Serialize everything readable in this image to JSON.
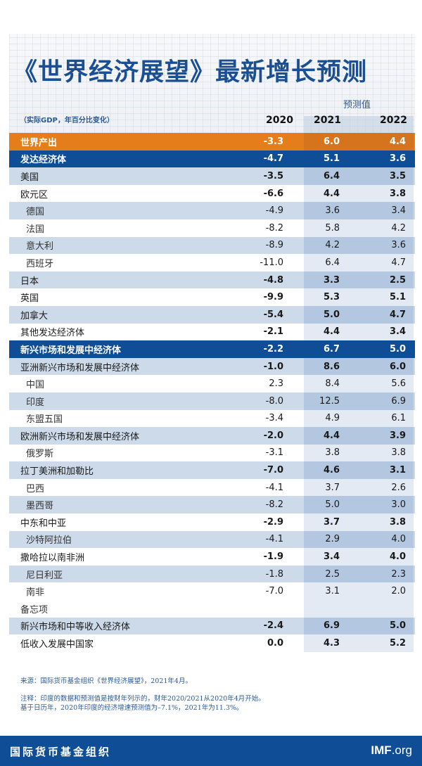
{
  "title": "《世界经济展望》最新增长预测",
  "subtitle": "（实际GDP，年百分比变化）",
  "forecast_label": "预测值",
  "columns": [
    "2020",
    "2021",
    "2022"
  ],
  "colors": {
    "title": "#1a4f93",
    "orange": "#e57d1a",
    "navy": "#0f4d97",
    "row_shade": "#ccdaea",
    "forecast_shade": "#b3c7e0"
  },
  "rows": [
    {
      "label": "世界产出",
      "values": [
        "-3.3",
        "6.0",
        "4.4"
      ],
      "style": "orange"
    },
    {
      "label": "发达经济体",
      "values": [
        "-4.7",
        "5.1",
        "3.6"
      ],
      "style": "navy"
    },
    {
      "label": "美国",
      "values": [
        "-3.5",
        "6.4",
        "3.5"
      ],
      "style": "shaded"
    },
    {
      "label": "欧元区",
      "values": [
        "-6.6",
        "4.4",
        "3.8"
      ],
      "style": "white"
    },
    {
      "label": "德国",
      "values": [
        "-4.9",
        "3.6",
        "3.4"
      ],
      "style": "shaded sub"
    },
    {
      "label": "法国",
      "values": [
        "-8.2",
        "5.8",
        "4.2"
      ],
      "style": "white sub"
    },
    {
      "label": "意大利",
      "values": [
        "-8.9",
        "4.2",
        "3.6"
      ],
      "style": "shaded sub"
    },
    {
      "label": "西班牙",
      "values": [
        "-11.0",
        "6.4",
        "4.7"
      ],
      "style": "white sub"
    },
    {
      "label": "日本",
      "values": [
        "-4.8",
        "3.3",
        "2.5"
      ],
      "style": "shaded"
    },
    {
      "label": "英国",
      "values": [
        "-9.9",
        "5.3",
        "5.1"
      ],
      "style": "white"
    },
    {
      "label": "加拿大",
      "values": [
        "-5.4",
        "5.0",
        "4.7"
      ],
      "style": "shaded"
    },
    {
      "label": "其他发达经济体",
      "values": [
        "-2.1",
        "4.4",
        "3.4"
      ],
      "style": "white"
    },
    {
      "label": "新兴市场和发展中经济体",
      "values": [
        "-2.2",
        "6.7",
        "5.0"
      ],
      "style": "navy"
    },
    {
      "label": "亚洲新兴市场和发展中经济体",
      "values": [
        "-1.0",
        "8.6",
        "6.0"
      ],
      "style": "shaded"
    },
    {
      "label": "中国",
      "values": [
        "2.3",
        "8.4",
        "5.6"
      ],
      "style": "white sub"
    },
    {
      "label": "印度",
      "values": [
        "-8.0",
        "12.5",
        "6.9"
      ],
      "style": "shaded sub"
    },
    {
      "label": "东盟五国",
      "values": [
        "-3.4",
        "4.9",
        "6.1"
      ],
      "style": "white sub"
    },
    {
      "label": "欧洲新兴市场和发展中经济体",
      "values": [
        "-2.0",
        "4.4",
        "3.9"
      ],
      "style": "shaded"
    },
    {
      "label": "俄罗斯",
      "values": [
        "-3.1",
        "3.8",
        "3.8"
      ],
      "style": "white sub"
    },
    {
      "label": "拉丁美洲和加勒比",
      "values": [
        "-7.0",
        "4.6",
        "3.1"
      ],
      "style": "shaded"
    },
    {
      "label": "巴西",
      "values": [
        "-4.1",
        "3.7",
        "2.6"
      ],
      "style": "white sub"
    },
    {
      "label": "墨西哥",
      "values": [
        "-8.2",
        "5.0",
        "3.0"
      ],
      "style": "shaded sub"
    },
    {
      "label": "中东和中亚",
      "values": [
        "-2.9",
        "3.7",
        "3.8"
      ],
      "style": "white"
    },
    {
      "label": "沙特阿拉伯",
      "values": [
        "-4.1",
        "2.9",
        "4.0"
      ],
      "style": "shaded sub"
    },
    {
      "label": "撒哈拉以南非洲",
      "values": [
        "-1.9",
        "3.4",
        "4.0"
      ],
      "style": "white"
    },
    {
      "label": "尼日利亚",
      "values": [
        "-1.8",
        "2.5",
        "2.3"
      ],
      "style": "shaded sub"
    },
    {
      "label": "南非",
      "values": [
        "-7.0",
        "3.1",
        "2.0"
      ],
      "style": "white sub"
    },
    {
      "label": "备忘项",
      "values": [
        "",
        "",
        ""
      ],
      "style": "white memo"
    },
    {
      "label": "新兴市场和中等收入经济体",
      "values": [
        "-2.4",
        "6.9",
        "5.0"
      ],
      "style": "shaded"
    },
    {
      "label": "低收入发展中国家",
      "values": [
        "0.0",
        "4.3",
        "5.2"
      ],
      "style": "white"
    }
  ],
  "notes": {
    "source": "来源：国际货币基金组织《世界经济展望》，2021年4月。",
    "note_line1": "注释：印度的数据和预测值是按财年列示的，财年2020/2021从2020年4月开始。",
    "note_line2": "基于日历年，2020年印度的经济增速预测值为–7.1%，2021年为11.3%。"
  },
  "footer": {
    "org": "国际货币基金组织",
    "logo_bold": "IMF",
    "logo_rest": ".org"
  }
}
